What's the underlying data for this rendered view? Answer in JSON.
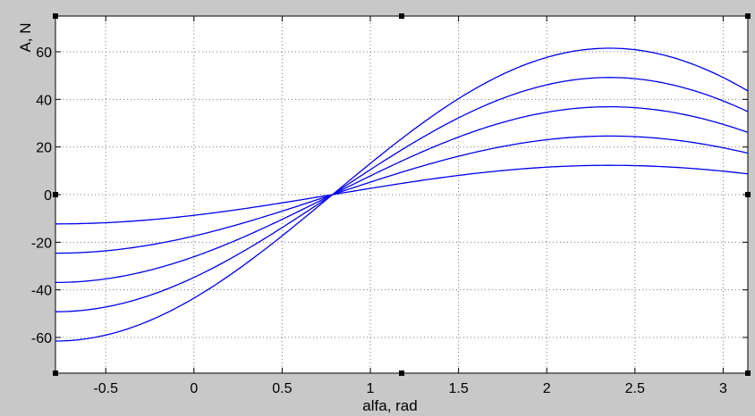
{
  "chart_data": {
    "type": "line",
    "title": "",
    "xlabel": "alfa, rad",
    "ylabel": "A, N",
    "xlim": [
      -0.785,
      3.14
    ],
    "ylim": [
      -75,
      75
    ],
    "xticks": [
      -0.5,
      0,
      0.5,
      1,
      1.5,
      2,
      2.5,
      3
    ],
    "yticks": [
      -60,
      -40,
      -20,
      0,
      20,
      40,
      60
    ],
    "xtick_labels": [
      "-0.5",
      "0",
      "0.5",
      "1",
      "1.5",
      "2",
      "2.5",
      "3"
    ],
    "ytick_labels": [
      "-60",
      "-40",
      "-20",
      "0",
      "20",
      "40",
      "60"
    ],
    "grid": true,
    "line_color": "#0000ee",
    "background_color": "#c8c8c8",
    "plot_background": "#ffffff",
    "series": [
      {
        "x": [
          -0.785,
          -0.5,
          0,
          0.5,
          0.785,
          1,
          1.5,
          2,
          2.356,
          2.5,
          3,
          3.14
        ],
        "values": [
          -12.3,
          -11.7,
          -8.7,
          -3.3,
          0,
          2.5,
          7.9,
          11.5,
          12.3,
          12.2,
          10.0,
          8.7
        ]
      },
      {
        "x": [
          -0.785,
          -0.5,
          0,
          0.5,
          0.785,
          1,
          1.5,
          2,
          2.356,
          2.5,
          3,
          3.14
        ],
        "values": [
          -24.6,
          -23.5,
          -17.4,
          -6.6,
          0,
          5.1,
          15.8,
          23.0,
          24.6,
          24.3,
          20.1,
          17.4
        ]
      },
      {
        "x": [
          -0.785,
          -0.5,
          0,
          0.5,
          0.785,
          1,
          1.5,
          2,
          2.356,
          2.5,
          3,
          3.14
        ],
        "values": [
          -36.9,
          -35.2,
          -26.1,
          -9.9,
          0,
          7.6,
          23.7,
          34.5,
          36.9,
          36.5,
          30.1,
          26.1
        ]
      },
      {
        "x": [
          -0.785,
          -0.5,
          0,
          0.5,
          0.785,
          1,
          1.5,
          2,
          2.356,
          2.5,
          3,
          3.14
        ],
        "values": [
          -49.2,
          -47.0,
          -34.8,
          -13.3,
          0,
          10.1,
          31.6,
          46.0,
          49.2,
          48.7,
          40.2,
          34.8
        ]
      },
      {
        "x": [
          -0.785,
          -0.5,
          0,
          0.5,
          0.785,
          1,
          1.5,
          2,
          2.356,
          2.5,
          3,
          3.14
        ],
        "values": [
          -61.5,
          -58.7,
          -43.5,
          -16.6,
          0,
          12.6,
          39.5,
          57.5,
          61.5,
          60.9,
          50.2,
          43.5
        ]
      }
    ]
  }
}
